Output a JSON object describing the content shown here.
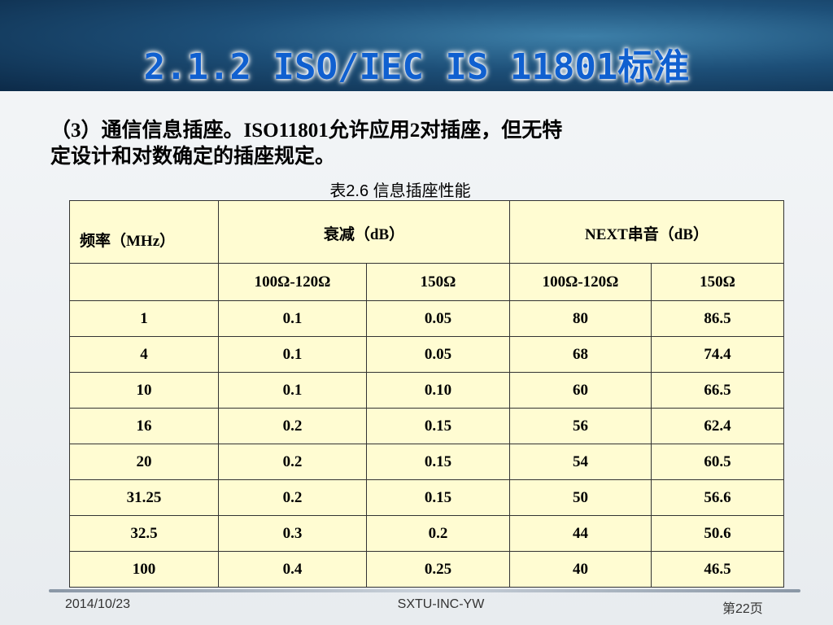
{
  "header": {
    "title": "2.1.2 ISO/IEC IS 11801标准"
  },
  "intro": {
    "line1": "（3）通信信息插座。ISO11801允许应用2对插座，但无特",
    "line2": "定设计和对数确定的插座规定。"
  },
  "table": {
    "caption": "表2.6 信息插座性能",
    "head": {
      "freq": "频率（MHz）",
      "attenuation": "衰减（dB）",
      "next": "NEXT串音（dB）"
    },
    "subhead": [
      "100Ω-120Ω",
      "150Ω",
      "100Ω-120Ω",
      "150Ω"
    ],
    "rows": [
      [
        "1",
        "0.1",
        "0.05",
        "80",
        "86.5"
      ],
      [
        "4",
        "0.1",
        "0.05",
        "68",
        "74.4"
      ],
      [
        "10",
        "0.1",
        "0.10",
        "60",
        "66.5"
      ],
      [
        "16",
        "0.2",
        "0.15",
        "56",
        "62.4"
      ],
      [
        "20",
        "0.2",
        "0.15",
        "54",
        "60.5"
      ],
      [
        "31.25",
        "0.2",
        "0.15",
        "50",
        "56.6"
      ],
      [
        "32.5",
        "0.3",
        "0.2",
        "44",
        "50.6"
      ],
      [
        "100",
        "0.4",
        "0.25",
        "40",
        "46.5"
      ]
    ]
  },
  "footer": {
    "date": "2014/10/23",
    "org": "SXTU-INC-YW",
    "page": "第22页"
  }
}
